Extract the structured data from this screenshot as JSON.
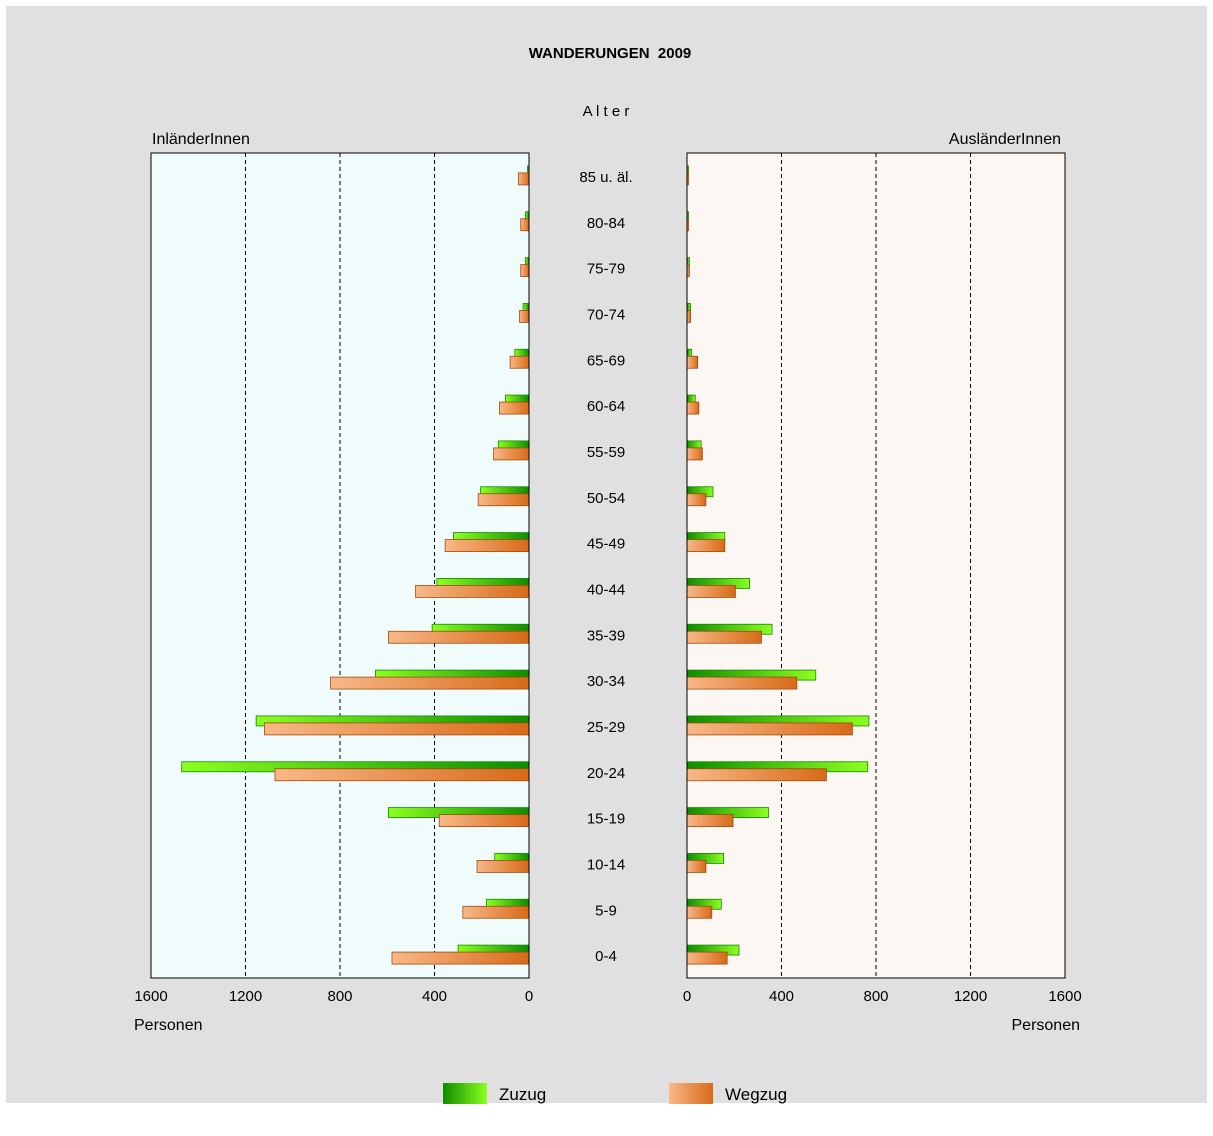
{
  "chart_data": {
    "type": "bar",
    "title": "WANDERUNGEN  2009",
    "center_label": "A l t e r",
    "categories": [
      "85 u. äl.",
      "80-84",
      "75-79",
      "70-74",
      "65-69",
      "60-64",
      "55-59",
      "50-54",
      "45-49",
      "40-44",
      "35-39",
      "30-34",
      "25-29",
      "20-24",
      "15-19",
      "10-14",
      "5-9",
      "0-4"
    ],
    "panels": [
      {
        "name": "InländerInnen",
        "direction": "left",
        "xlabel": "Personen",
        "xlim": [
          0,
          1600
        ],
        "ticks": [
          "1600",
          "1200",
          "800",
          "400",
          "0"
        ],
        "grid": true,
        "background": "#f0fcfc",
        "series": [
          {
            "name": "Zuzug",
            "values": [
              5,
              15,
              15,
              25,
              60,
              100,
              130,
              205,
              320,
              390,
              410,
              650,
              1155,
              1470,
              595,
              145,
              180,
              300
            ]
          },
          {
            "name": "Wegzug",
            "values": [
              45,
              35,
              35,
              40,
              80,
              125,
              150,
              215,
              355,
              480,
              595,
              840,
              1120,
              1075,
              380,
              220,
              280,
              580
            ]
          }
        ]
      },
      {
        "name": "AusländerInnen",
        "direction": "right",
        "xlabel": "Personen",
        "xlim": [
          0,
          1600
        ],
        "ticks": [
          "0",
          "400",
          "800",
          "1200",
          "1600"
        ],
        "grid": true,
        "background": "#fcf7f2",
        "series": [
          {
            "name": "Zuzug",
            "values": [
              5,
              5,
              10,
              15,
              20,
              35,
              60,
              110,
              160,
              265,
              360,
              545,
              770,
              765,
              345,
              155,
              145,
              220
            ]
          },
          {
            "name": "Wegzug",
            "values": [
              5,
              5,
              10,
              15,
              45,
              50,
              65,
              80,
              160,
              205,
              315,
              465,
              700,
              590,
              195,
              80,
              105,
              170
            ]
          }
        ]
      }
    ],
    "legend": {
      "placement": "bottom",
      "items": [
        {
          "name": "Zuzug",
          "color": "#1e9600"
        },
        {
          "name": "Wegzug",
          "color": "#e07a30"
        }
      ]
    },
    "colors": {
      "zuzug_light": "#8cff20",
      "zuzug_dark": "#0f8c00",
      "wegzug_light": "#f8b888",
      "wegzug_dark": "#d86a18",
      "frame": "#e0e0e0"
    }
  }
}
